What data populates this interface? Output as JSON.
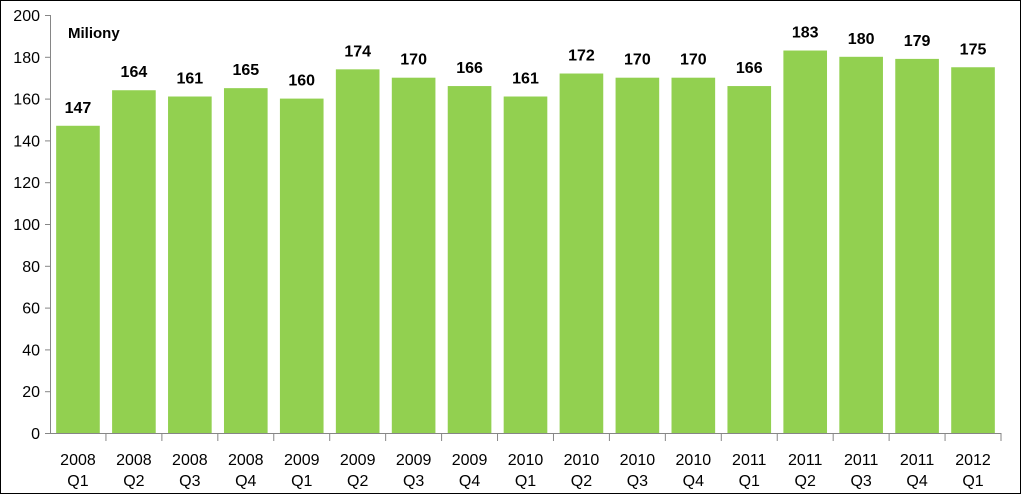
{
  "chart_data": {
    "type": "bar",
    "unit_label": "Miliony",
    "categories": [
      [
        "2008",
        "Q1"
      ],
      [
        "2008",
        "Q2"
      ],
      [
        "2008",
        "Q3"
      ],
      [
        "2008",
        "Q4"
      ],
      [
        "2009",
        "Q1"
      ],
      [
        "2009",
        "Q2"
      ],
      [
        "2009",
        "Q3"
      ],
      [
        "2009",
        "Q4"
      ],
      [
        "2010",
        "Q1"
      ],
      [
        "2010",
        "Q2"
      ],
      [
        "2010",
        "Q3"
      ],
      [
        "2010",
        "Q4"
      ],
      [
        "2011",
        "Q1"
      ],
      [
        "2011",
        "Q2"
      ],
      [
        "2011",
        "Q3"
      ],
      [
        "2011",
        "Q4"
      ],
      [
        "2012",
        "Q1"
      ]
    ],
    "values": [
      147,
      164,
      161,
      165,
      160,
      174,
      170,
      166,
      161,
      172,
      170,
      170,
      166,
      183,
      180,
      179,
      175
    ],
    "data_labels": [
      "147",
      "164",
      "161",
      "165",
      "160",
      "174",
      "170",
      "166",
      "161",
      "172",
      "170",
      "170",
      "166",
      "183",
      "180",
      "179",
      "175"
    ],
    "yticks": [
      "0",
      "20",
      "40",
      "60",
      "80",
      "100",
      "120",
      "140",
      "160",
      "180",
      "200"
    ],
    "ylim": [
      0,
      200
    ],
    "grid": false,
    "legend": "none",
    "bar_color": "#92d050"
  }
}
